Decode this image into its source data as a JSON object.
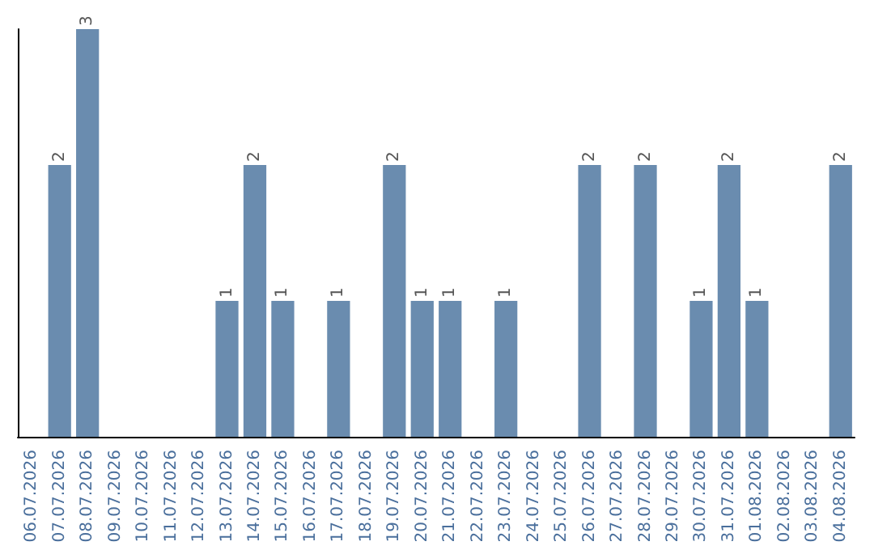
{
  "chart_data": {
    "type": "bar",
    "categories": [
      "06.07.2026",
      "07.07.2026",
      "08.07.2026",
      "09.07.2026",
      "10.07.2026",
      "11.07.2026",
      "12.07.2026",
      "13.07.2026",
      "14.07.2026",
      "15.07.2026",
      "16.07.2026",
      "17.07.2026",
      "18.07.2026",
      "19.07.2026",
      "20.07.2026",
      "21.07.2026",
      "22.07.2026",
      "23.07.2026",
      "24.07.2026",
      "25.07.2026",
      "26.07.2026",
      "27.07.2026",
      "28.07.2026",
      "29.07.2026",
      "30.07.2026",
      "31.07.2026",
      "01.08.2026",
      "02.08.2026",
      "03.08.2026",
      "04.08.2026"
    ],
    "values": [
      0,
      2,
      3,
      0,
      0,
      0,
      0,
      1,
      2,
      1,
      0,
      1,
      0,
      2,
      1,
      1,
      0,
      1,
      0,
      0,
      2,
      0,
      2,
      0,
      1,
      2,
      1,
      0,
      0,
      2
    ],
    "value_labels": [
      null,
      "2",
      "3",
      null,
      null,
      null,
      null,
      "1",
      "2",
      "1",
      null,
      "1",
      null,
      "2",
      "1",
      "1",
      null,
      "1",
      null,
      null,
      "2",
      null,
      "2",
      null,
      "1",
      "2",
      "1",
      null,
      null,
      "2"
    ],
    "color": "#6a8caf",
    "tick_labels": "x"
  }
}
